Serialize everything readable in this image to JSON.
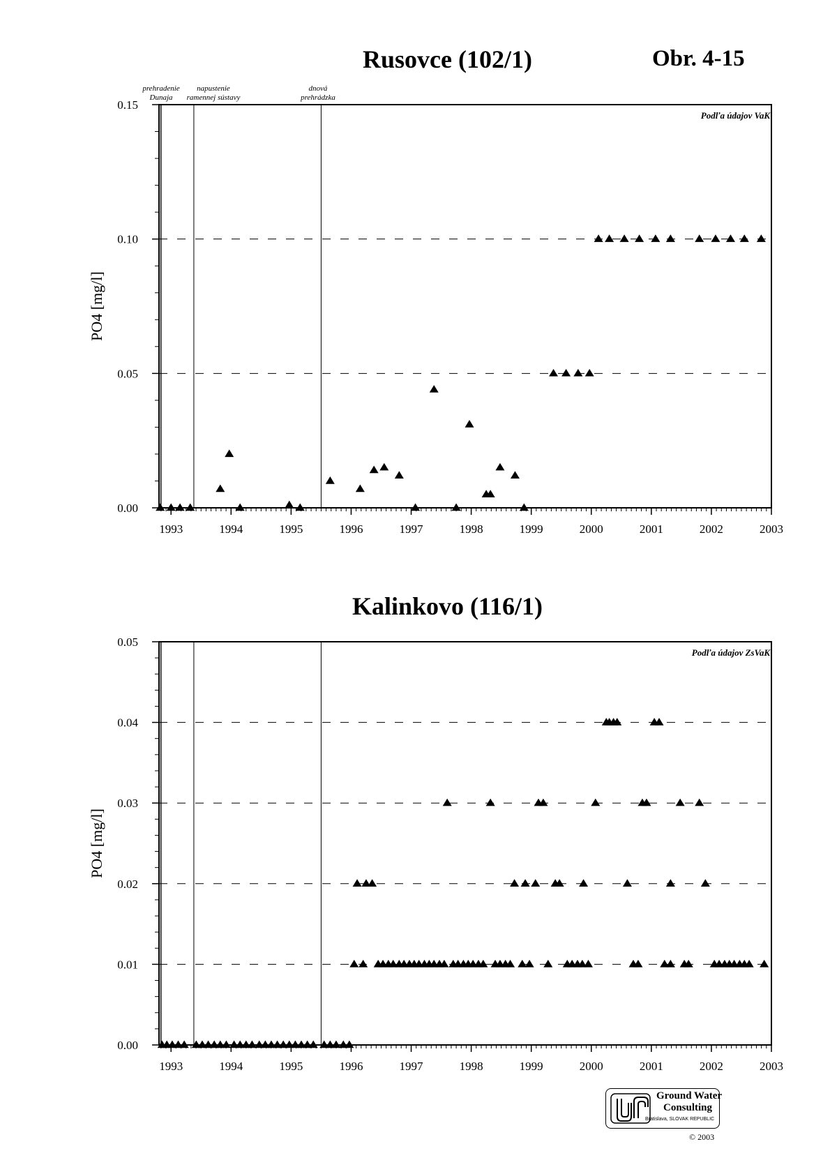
{
  "page": {
    "figure_label": "Obr. 4-15",
    "logo_line1": "Ground Water",
    "logo_line2": "Consulting",
    "logo_line3": "Bratislava, SLOVAK REPUBLIC",
    "copyright": "© 2003"
  },
  "chart_data": [
    {
      "type": "scatter",
      "title": "Rusovce (102/1)",
      "ylabel": "PO4 [mg/l]",
      "xlabel": "",
      "source_note": "Podľa údajov VaK",
      "xlim": [
        1992.8,
        2003.0
      ],
      "ylim": [
        0,
        0.15
      ],
      "x_ticks": [
        1993,
        1994,
        1995,
        1996,
        1997,
        1998,
        1999,
        2000,
        2001,
        2002,
        2003
      ],
      "y_ticks": [
        "0.00",
        "0.05",
        "0.10",
        "0.15"
      ],
      "y_tick_values": [
        0,
        0.05,
        0.1,
        0.15
      ],
      "gridlines_dashed": [
        0.05,
        0.1
      ],
      "marker": "triangle",
      "color": "#000000",
      "events": [
        {
          "x": 1992.83,
          "label": "prehradenie Dunaja",
          "line1": "prehradenie",
          "line2": "Dunaja"
        },
        {
          "x": 1993.38,
          "label": "napustenie ramennej sústavy",
          "line1": "napustenie",
          "line2": "ramennej sústavy"
        },
        {
          "x": 1995.5,
          "label": "dnová prehrádzka",
          "line1": "dnová",
          "line2": "prehrádzka"
        }
      ],
      "points": [
        [
          1992.82,
          0.0
        ],
        [
          1993.0,
          0.0
        ],
        [
          1993.15,
          0.0
        ],
        [
          1993.32,
          0.0
        ],
        [
          1993.82,
          0.007
        ],
        [
          1993.97,
          0.02
        ],
        [
          1994.15,
          0.0
        ],
        [
          1994.97,
          0.001
        ],
        [
          1995.15,
          0.0
        ],
        [
          1995.65,
          0.01
        ],
        [
          1996.15,
          0.007
        ],
        [
          1996.38,
          0.014
        ],
        [
          1996.55,
          0.015
        ],
        [
          1996.8,
          0.012
        ],
        [
          1997.07,
          0.0
        ],
        [
          1997.38,
          0.044
        ],
        [
          1997.75,
          0.0
        ],
        [
          1997.97,
          0.031
        ],
        [
          1998.25,
          0.005
        ],
        [
          1998.32,
          0.005
        ],
        [
          1998.48,
          0.015
        ],
        [
          1998.73,
          0.012
        ],
        [
          1998.88,
          0.0
        ],
        [
          1999.37,
          0.05
        ],
        [
          1999.58,
          0.05
        ],
        [
          1999.78,
          0.05
        ],
        [
          1999.97,
          0.05
        ],
        [
          2000.12,
          0.1
        ],
        [
          2000.3,
          0.1
        ],
        [
          2000.55,
          0.1
        ],
        [
          2000.8,
          0.1
        ],
        [
          2001.07,
          0.1
        ],
        [
          2001.32,
          0.1
        ],
        [
          2001.8,
          0.1
        ],
        [
          2002.07,
          0.1
        ],
        [
          2002.32,
          0.1
        ],
        [
          2002.55,
          0.1
        ],
        [
          2002.83,
          0.1
        ]
      ]
    },
    {
      "type": "scatter",
      "title": "Kalinkovo (116/1)",
      "ylabel": "PO4 [mg/l]",
      "xlabel": "",
      "source_note": "Podľa údajov ZsVaK",
      "xlim": [
        1992.8,
        2003.0
      ],
      "ylim": [
        0,
        0.05
      ],
      "x_ticks": [
        1993,
        1994,
        1995,
        1996,
        1997,
        1998,
        1999,
        2000,
        2001,
        2002,
        2003
      ],
      "y_ticks": [
        "0.00",
        "0.01",
        "0.02",
        "0.03",
        "0.04",
        "0.05"
      ],
      "y_tick_values": [
        0,
        0.01,
        0.02,
        0.03,
        0.04,
        0.05
      ],
      "gridlines_dashed": [
        0.01,
        0.02,
        0.03,
        0.04
      ],
      "marker": "triangle",
      "color": "#000000",
      "events": [
        {
          "x": 1992.83,
          "label": ""
        },
        {
          "x": 1993.38,
          "label": ""
        },
        {
          "x": 1995.5,
          "label": ""
        }
      ],
      "points": [
        [
          1992.85,
          0.0
        ],
        [
          1992.93,
          0.0
        ],
        [
          1993.02,
          0.0
        ],
        [
          1993.12,
          0.0
        ],
        [
          1993.22,
          0.0
        ],
        [
          1993.42,
          0.0
        ],
        [
          1993.52,
          0.0
        ],
        [
          1993.62,
          0.0
        ],
        [
          1993.72,
          0.0
        ],
        [
          1993.82,
          0.0
        ],
        [
          1993.92,
          0.0
        ],
        [
          1994.05,
          0.0
        ],
        [
          1994.15,
          0.0
        ],
        [
          1994.25,
          0.0
        ],
        [
          1994.35,
          0.0
        ],
        [
          1994.47,
          0.0
        ],
        [
          1994.57,
          0.0
        ],
        [
          1994.67,
          0.0
        ],
        [
          1994.77,
          0.0
        ],
        [
          1994.87,
          0.0
        ],
        [
          1994.97,
          0.0
        ],
        [
          1995.07,
          0.0
        ],
        [
          1995.17,
          0.0
        ],
        [
          1995.27,
          0.0
        ],
        [
          1995.37,
          0.0
        ],
        [
          1995.55,
          0.0
        ],
        [
          1995.65,
          0.0
        ],
        [
          1995.75,
          0.0
        ],
        [
          1995.87,
          0.0
        ],
        [
          1995.97,
          0.0
        ],
        [
          1996.05,
          0.01
        ],
        [
          1996.2,
          0.01
        ],
        [
          1996.45,
          0.01
        ],
        [
          1996.53,
          0.01
        ],
        [
          1996.62,
          0.01
        ],
        [
          1996.7,
          0.01
        ],
        [
          1996.8,
          0.01
        ],
        [
          1996.88,
          0.01
        ],
        [
          1996.97,
          0.01
        ],
        [
          1997.05,
          0.01
        ],
        [
          1997.13,
          0.01
        ],
        [
          1997.22,
          0.01
        ],
        [
          1997.3,
          0.01
        ],
        [
          1997.38,
          0.01
        ],
        [
          1997.47,
          0.01
        ],
        [
          1997.55,
          0.01
        ],
        [
          1997.7,
          0.01
        ],
        [
          1997.78,
          0.01
        ],
        [
          1997.87,
          0.01
        ],
        [
          1997.95,
          0.01
        ],
        [
          1998.03,
          0.01
        ],
        [
          1998.12,
          0.01
        ],
        [
          1998.2,
          0.01
        ],
        [
          1998.4,
          0.01
        ],
        [
          1998.48,
          0.01
        ],
        [
          1998.57,
          0.01
        ],
        [
          1998.65,
          0.01
        ],
        [
          1998.85,
          0.01
        ],
        [
          1998.97,
          0.01
        ],
        [
          1999.28,
          0.01
        ],
        [
          1999.6,
          0.01
        ],
        [
          1999.68,
          0.01
        ],
        [
          1999.77,
          0.01
        ],
        [
          1999.85,
          0.01
        ],
        [
          1999.95,
          0.01
        ],
        [
          2000.7,
          0.01
        ],
        [
          2000.78,
          0.01
        ],
        [
          2001.22,
          0.01
        ],
        [
          2001.32,
          0.01
        ],
        [
          2001.55,
          0.01
        ],
        [
          2001.62,
          0.01
        ],
        [
          2002.05,
          0.01
        ],
        [
          2002.13,
          0.01
        ],
        [
          2002.22,
          0.01
        ],
        [
          2002.3,
          0.01
        ],
        [
          2002.38,
          0.01
        ],
        [
          2002.47,
          0.01
        ],
        [
          2002.55,
          0.01
        ],
        [
          2002.63,
          0.01
        ],
        [
          2002.88,
          0.01
        ],
        [
          1996.1,
          0.02
        ],
        [
          1996.25,
          0.02
        ],
        [
          1996.35,
          0.02
        ],
        [
          1998.72,
          0.02
        ],
        [
          1998.9,
          0.02
        ],
        [
          1999.07,
          0.02
        ],
        [
          1999.4,
          0.02
        ],
        [
          1999.47,
          0.02
        ],
        [
          1999.87,
          0.02
        ],
        [
          2000.6,
          0.02
        ],
        [
          2001.32,
          0.02
        ],
        [
          2001.9,
          0.02
        ],
        [
          1997.6,
          0.03
        ],
        [
          1998.32,
          0.03
        ],
        [
          1999.12,
          0.03
        ],
        [
          1999.2,
          0.03
        ],
        [
          2000.07,
          0.03
        ],
        [
          2000.85,
          0.03
        ],
        [
          2000.92,
          0.03
        ],
        [
          2001.48,
          0.03
        ],
        [
          2001.8,
          0.03
        ],
        [
          2000.25,
          0.04
        ],
        [
          2000.3,
          0.04
        ],
        [
          2000.37,
          0.04
        ],
        [
          2000.43,
          0.04
        ],
        [
          2001.05,
          0.04
        ],
        [
          2001.13,
          0.04
        ]
      ]
    }
  ]
}
